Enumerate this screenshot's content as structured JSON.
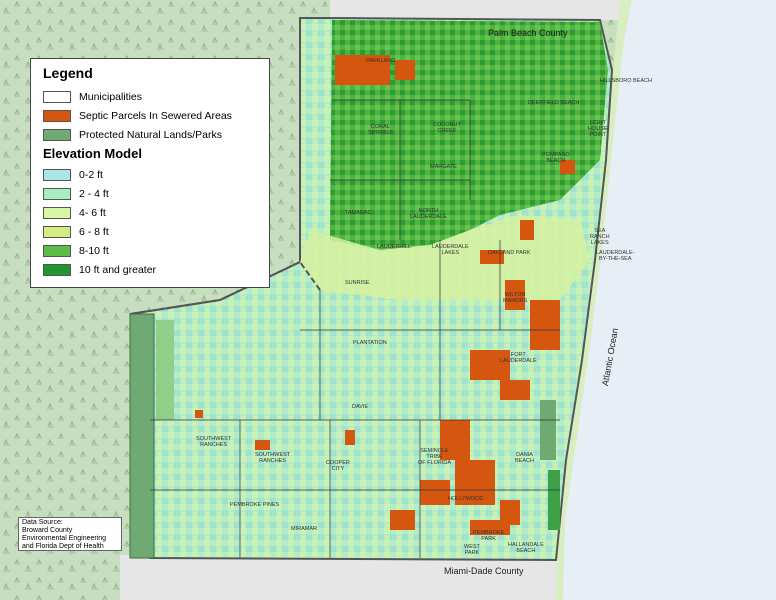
{
  "legend": {
    "title": "Legend",
    "layers": [
      {
        "label": "Municipalities",
        "color": "#ffffff"
      },
      {
        "label": "Septic Parcels In Sewered Areas",
        "color": "#d4560f"
      },
      {
        "label": "Protected Natural Lands/Parks",
        "color": "#6faa75"
      }
    ],
    "elevation_title": "Elevation Model",
    "elevation_classes": [
      {
        "label": "0-2 ft",
        "color": "#a8e7e5"
      },
      {
        "label": "2 - 4 ft",
        "color": "#a9eec0"
      },
      {
        "label": "4- 6 ft",
        "color": "#d8f6a5"
      },
      {
        "label": "6 - 8 ft",
        "color": "#d4ec86"
      },
      {
        "label": "8-10 ft",
        "color": "#5dbb48"
      },
      {
        "label": "10 ft and greater",
        "color": "#21962f"
      }
    ]
  },
  "regions": {
    "north": "Palm Beach County",
    "south": "Miami-Dade County",
    "ocean": "Atlantic Ocean"
  },
  "cities": {
    "coral_springs": "CORAL\nSPRINGS",
    "coconut_creek": "COCONUT\nCREEK",
    "margate": "MARGATE",
    "tamarac": "TAMARAC",
    "north_lauderdale": "NORTH\nLAUDERDALE",
    "lauderhill": "LAUDERHILL",
    "lauderdale_lakes": "LAUDERDALE\nLAKES",
    "oakland_park": "OAKLAND PARK",
    "wilton_manors": "WILTON\nMANORS",
    "sunrise": "SUNRISE",
    "plantation": "PLANTATION",
    "fort_lauderdale": "FORT\nLAUDERDALE",
    "davie": "DAVIE",
    "southwest_ranches": "SOUTHWEST\nRANCHES",
    "southwest_ranches_2": "SOUTHWEST\nRANCHES",
    "cooper_city": "COOPER\nCITY",
    "pembroke_pines": "PEMBROKE PINES",
    "seminole_tribe": "SEMINOLE\nTRIBE\nOF FLORIDA",
    "hollywood": "HOLLYWOOD",
    "dania_beach": "DANIA\nBEACH",
    "miramar": "MIRAMAR",
    "west_park": "WEST\nPARK",
    "hallandale": "HALLANDALE\nBEACH",
    "pembroke_park": "PEMBROKE\nPARK",
    "sea_ranch_lakes": "SEA\nRANCH\nLAKES",
    "lauderdale_by_the_sea": "LAUDERDALE-\nBY-THE-SEA",
    "lighthouse_point": "LIGHT\nHOUSE\nPOINT",
    "deerfield_beach": "DEERFIELD BEACH",
    "parkland": "PARKLAND",
    "pompano_beach": "POMPANO\nBEACH",
    "hillsboro_beach": "HILLSBORO BEACH"
  },
  "source": {
    "lines": [
      "Data Source:",
      "Broward County",
      "Environmental Engineering",
      "and Florida Dept of Health"
    ]
  }
}
